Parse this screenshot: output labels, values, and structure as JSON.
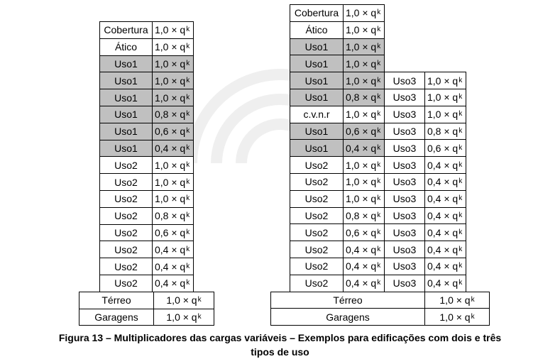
{
  "left_building": {
    "floors": [
      {
        "label": "Cobertura",
        "value": "1,0 × q",
        "sub": "k",
        "shaded": false
      },
      {
        "label": "Ático",
        "value": "1,0 × q",
        "sub": "k",
        "shaded": false
      },
      {
        "label": "Uso1",
        "value": "1,0 × q",
        "sub": "k",
        "shaded": true
      },
      {
        "label": "Uso1",
        "value": "1,0 × q",
        "sub": "k",
        "shaded": true
      },
      {
        "label": "Uso1",
        "value": "1,0 × q",
        "sub": "k",
        "shaded": true
      },
      {
        "label": "Uso1",
        "value": "0,8 × q",
        "sub": "k",
        "shaded": true
      },
      {
        "label": "Uso1",
        "value": "0,6 × q",
        "sub": "k",
        "shaded": true
      },
      {
        "label": "Uso1",
        "value": "0,4 × q",
        "sub": "k",
        "shaded": true
      },
      {
        "label": "Uso2",
        "value": "1,0 × q",
        "sub": "k",
        "shaded": false
      },
      {
        "label": "Uso2",
        "value": "1,0 × q",
        "sub": "k",
        "shaded": false
      },
      {
        "label": "Uso2",
        "value": "1,0 × q",
        "sub": "k",
        "shaded": false
      },
      {
        "label": "Uso2",
        "value": "0,8 × q",
        "sub": "k",
        "shaded": false
      },
      {
        "label": "Uso2",
        "value": "0,6 × q",
        "sub": "k",
        "shaded": false
      },
      {
        "label": "Uso2",
        "value": "0,4 × q",
        "sub": "k",
        "shaded": false
      },
      {
        "label": "Uso2",
        "value": "0,4 × q",
        "sub": "k",
        "shaded": false
      },
      {
        "label": "Uso2",
        "value": "0,4 × q",
        "sub": "k",
        "shaded": false
      }
    ],
    "base": [
      {
        "label": "Térreo",
        "value": "1,0 × q",
        "sub": "k"
      },
      {
        "label": "Garagens",
        "value": "1,0 × q",
        "sub": "k"
      }
    ]
  },
  "right_building": {
    "floors": [
      {
        "label": "Cobertura",
        "value": "1,0 × q",
        "sub": "k",
        "shaded": false
      },
      {
        "label": "Ático",
        "value": "1,0 × q",
        "sub": "k",
        "shaded": false
      },
      {
        "label": "Uso1",
        "value": "1,0 × q",
        "sub": "k",
        "shaded": true
      },
      {
        "label": "Uso1",
        "value": "1,0 × q",
        "sub": "k",
        "shaded": true
      },
      {
        "label": "Uso1",
        "value": "1,0 × q",
        "sub": "k",
        "shaded": true,
        "u3": {
          "label": "Uso3",
          "value": "1,0 × q",
          "sub": "k"
        }
      },
      {
        "label": "Uso1",
        "value": "0,8 × q",
        "sub": "k",
        "shaded": true,
        "u3": {
          "label": "Uso3",
          "value": "1,0 × q",
          "sub": "k"
        }
      },
      {
        "label": "c.v.n.r",
        "value": "1,0 × q",
        "sub": "k",
        "shaded": false,
        "u3": {
          "label": "Uso3",
          "value": "1,0 × q",
          "sub": "k"
        }
      },
      {
        "label": "Uso1",
        "value": "0,6 × q",
        "sub": "k",
        "shaded": true,
        "u3": {
          "label": "Uso3",
          "value": "0,8 × q",
          "sub": "k"
        }
      },
      {
        "label": "Uso1",
        "value": "0,4 × q",
        "sub": "k",
        "shaded": true,
        "u3": {
          "label": "Uso3",
          "value": "0,6 × q",
          "sub": "k"
        }
      },
      {
        "label": "Uso2",
        "value": "1,0 × q",
        "sub": "k",
        "shaded": false,
        "u3": {
          "label": "Uso3",
          "value": "0,4 × q",
          "sub": "k"
        }
      },
      {
        "label": "Uso2",
        "value": "1,0 × q",
        "sub": "k",
        "shaded": false,
        "u3": {
          "label": "Uso3",
          "value": "0,4 × q",
          "sub": "k"
        }
      },
      {
        "label": "Uso2",
        "value": "1,0 × q",
        "sub": "k",
        "shaded": false,
        "u3": {
          "label": "Uso3",
          "value": "0,4 × q",
          "sub": "k"
        }
      },
      {
        "label": "Uso2",
        "value": "0,8 × q",
        "sub": "k",
        "shaded": false,
        "u3": {
          "label": "Uso3",
          "value": "0,4 × q",
          "sub": "k"
        }
      },
      {
        "label": "Uso2",
        "value": "0,6 × q",
        "sub": "k",
        "shaded": false,
        "u3": {
          "label": "Uso3",
          "value": "0,4 × q",
          "sub": "k"
        }
      },
      {
        "label": "Uso2",
        "value": "0,4 × q",
        "sub": "k",
        "shaded": false,
        "u3": {
          "label": "Uso3",
          "value": "0,4 × q",
          "sub": "k"
        }
      },
      {
        "label": "Uso2",
        "value": "0,4 × q",
        "sub": "k",
        "shaded": false,
        "u3": {
          "label": "Uso3",
          "value": "0,4 × q",
          "sub": "k"
        }
      },
      {
        "label": "Uso2",
        "value": "0,4 × q",
        "sub": "k",
        "shaded": false,
        "u3": {
          "label": "Uso3",
          "value": "0,4 × q",
          "sub": "k"
        }
      }
    ],
    "base": [
      {
        "label": "Térreo",
        "value": "1,0 × q",
        "sub": "k"
      },
      {
        "label": "Garagens",
        "value": "1,0 × q",
        "sub": "k"
      }
    ]
  },
  "caption": {
    "line1": "Figura 13 – Multiplicadores das cargas variáveis – Exemplos para edificações com dois e três",
    "line2": "tipos de uso"
  },
  "colors": {
    "shade": "#c0c0c0",
    "border": "#000000"
  }
}
